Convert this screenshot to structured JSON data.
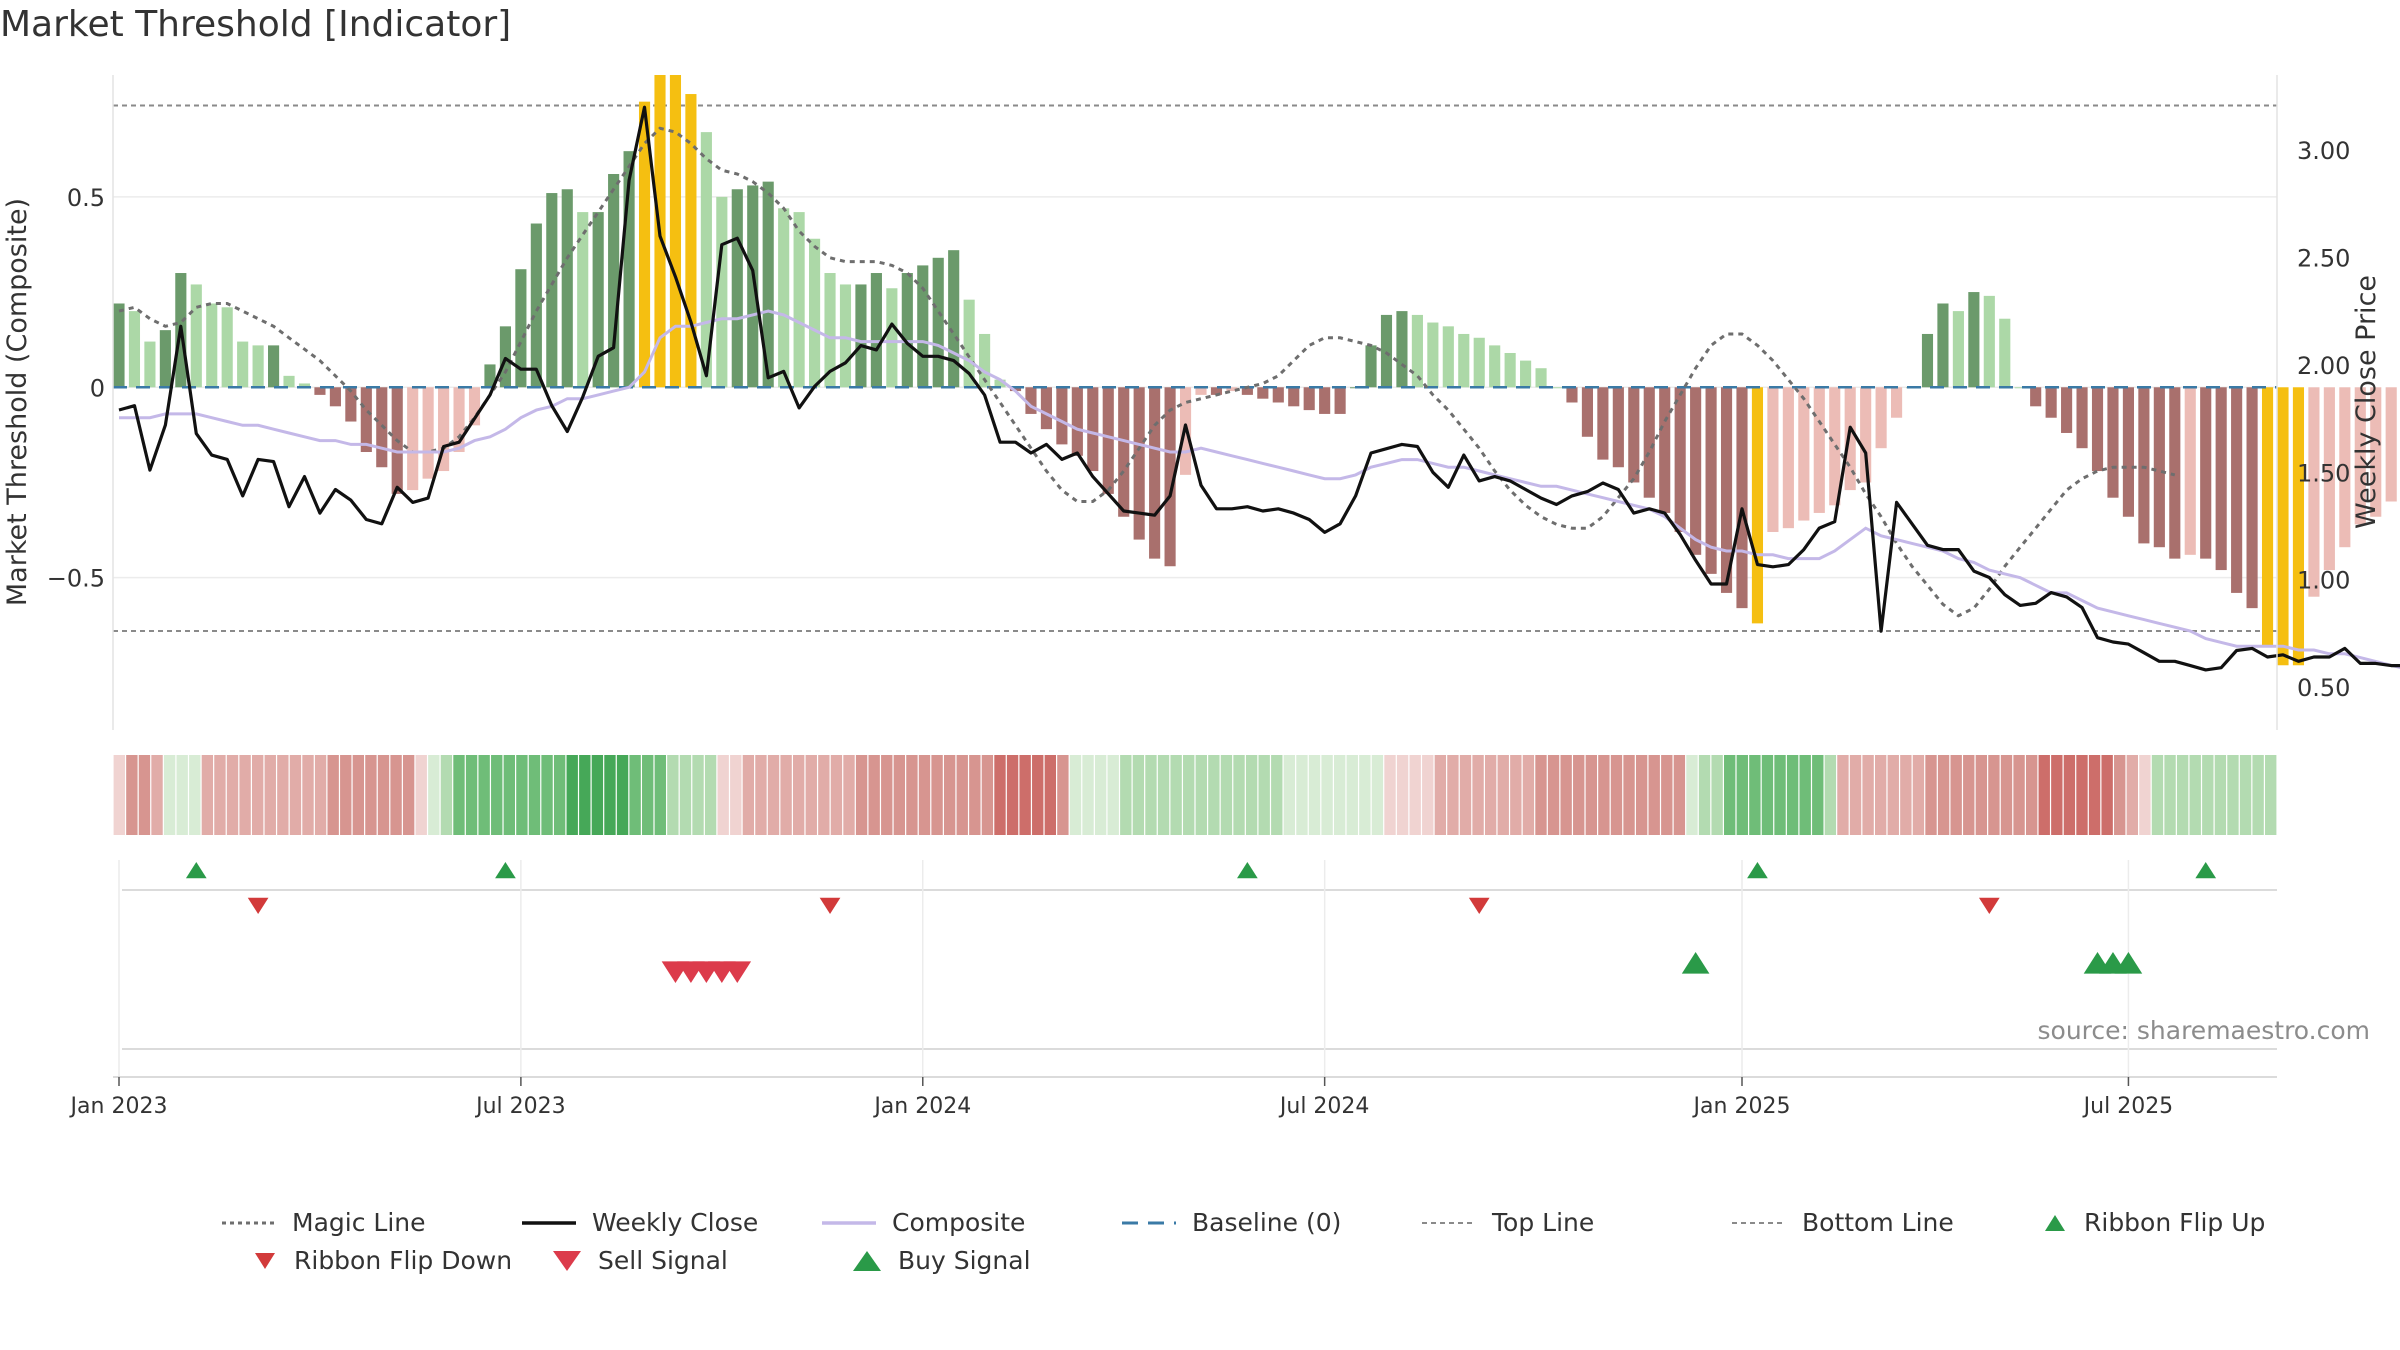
{
  "title": "Market Threshold [Indicator]",
  "source": "source: sharemaestro.com",
  "colors": {
    "strong_pos": "#6b9a6b",
    "weak_pos": "#acd8a7",
    "strong_neg": "#a9706d",
    "weak_neg": "#ecbcb6",
    "extreme": "#f5bf11",
    "magic": "#6e6e6e",
    "close": "#111111",
    "composite": "#c4b8e8",
    "baseline": "#3a7aa6",
    "guide": "#8a8a8a",
    "up": "#2a9a48",
    "down": "#d23a3a"
  },
  "chart_data": {
    "type": "bar",
    "x_start": "2023-01-02",
    "x_step_days": 7,
    "left_axis": {
      "label": "Market Threshold (Composite)",
      "range": [
        -0.9,
        0.82
      ],
      "ticks": [
        0.5,
        0,
        -0.5
      ],
      "tick_labels": [
        "0.5",
        "0",
        "−0.5"
      ]
    },
    "right_axis": {
      "label": "Weekly Close Price",
      "range": [
        0.3,
        3.35
      ],
      "ticks": [
        3.0,
        2.5,
        2.0,
        1.5,
        1.0,
        0.5
      ],
      "tick_labels": [
        "3.00",
        "2.50",
        "2.00",
        "1.50",
        "1.00",
        "0.50"
      ]
    },
    "x_ticks": [
      {
        "date": "2023-01-02",
        "label": "Jan 2023"
      },
      {
        "date": "2023-07-03",
        "label": "Jul 2023"
      },
      {
        "date": "2024-01-01",
        "label": "Jan 2024"
      },
      {
        "date": "2024-07-01",
        "label": "Jul 2024"
      },
      {
        "date": "2025-01-06",
        "label": "Jan 2025"
      },
      {
        "date": "2025-06-30",
        "label": "Jul 2025"
      }
    ],
    "top_line": 0.74,
    "bottom_line": -0.64,
    "composite_bars": [
      0.22,
      0.2,
      0.12,
      0.15,
      0.3,
      0.27,
      0.22,
      0.21,
      0.12,
      0.11,
      0.11,
      0.03,
      0.01,
      -0.02,
      -0.05,
      -0.09,
      -0.17,
      -0.21,
      -0.28,
      -0.27,
      -0.24,
      -0.22,
      -0.17,
      -0.1,
      0.06,
      0.16,
      0.31,
      0.43,
      0.51,
      0.52,
      0.46,
      0.46,
      0.56,
      0.62,
      0.75,
      0.82,
      0.82,
      0.77,
      0.67,
      0.5,
      0.52,
      0.53,
      0.54,
      0.47,
      0.46,
      0.39,
      0.3,
      0.27,
      0.27,
      0.3,
      0.26,
      0.3,
      0.32,
      0.34,
      0.36,
      0.23,
      0.14,
      0.02,
      -0.01,
      -0.07,
      -0.11,
      -0.15,
      -0.18,
      -0.22,
      -0.28,
      -0.34,
      -0.4,
      -0.45,
      -0.47,
      -0.23,
      -0.02,
      -0.02,
      -0.01,
      -0.02,
      -0.03,
      -0.04,
      -0.05,
      -0.06,
      -0.07,
      -0.07,
      0.0,
      0.11,
      0.19,
      0.2,
      0.19,
      0.17,
      0.16,
      0.14,
      0.13,
      0.11,
      0.09,
      0.07,
      0.05,
      0.0,
      -0.04,
      -0.13,
      -0.19,
      -0.21,
      -0.25,
      -0.29,
      -0.33,
      -0.38,
      -0.44,
      -0.49,
      -0.54,
      -0.58,
      -0.62,
      -0.38,
      -0.37,
      -0.35,
      -0.33,
      -0.31,
      -0.27,
      -0.25,
      -0.16,
      -0.08,
      0.0,
      0.14,
      0.22,
      0.2,
      0.25,
      0.24,
      0.18,
      0.0,
      -0.05,
      -0.08,
      -0.12,
      -0.16,
      -0.22,
      -0.29,
      -0.34,
      -0.41,
      -0.42,
      -0.45,
      -0.44,
      -0.45,
      -0.48,
      -0.54,
      -0.58,
      -0.68,
      -0.73,
      -0.73,
      -0.55,
      -0.48,
      -0.42,
      -0.36,
      -0.34,
      -0.3,
      -0.28,
      -0.25,
      -0.26,
      -0.24,
      -0.21,
      -0.25,
      -0.3,
      -0.3,
      -0.31
    ],
    "weekly_close": [
      1.79,
      1.81,
      1.51,
      1.72,
      2.18,
      1.68,
      1.58,
      1.56,
      1.39,
      1.56,
      1.55,
      1.34,
      1.48,
      1.31,
      1.42,
      1.37,
      1.28,
      1.26,
      1.43,
      1.36,
      1.38,
      1.62,
      1.64,
      1.75,
      1.86,
      2.03,
      1.98,
      1.98,
      1.81,
      1.69,
      1.85,
      2.04,
      2.08,
      2.86,
      3.2,
      2.6,
      2.41,
      2.2,
      1.95,
      2.56,
      2.59,
      2.44,
      1.94,
      1.97,
      1.8,
      1.9,
      1.97,
      2.01,
      2.09,
      2.07,
      2.19,
      2.1,
      2.04,
      2.04,
      2.02,
      1.96,
      1.86,
      1.64,
      1.64,
      1.59,
      1.63,
      1.56,
      1.59,
      1.48,
      1.4,
      1.32,
      1.31,
      1.3,
      1.39,
      1.72,
      1.44,
      1.33,
      1.33,
      1.34,
      1.32,
      1.33,
      1.31,
      1.28,
      1.22,
      1.26,
      1.39,
      1.59,
      1.61,
      1.63,
      1.62,
      1.5,
      1.43,
      1.58,
      1.46,
      1.48,
      1.46,
      1.42,
      1.38,
      1.35,
      1.39,
      1.41,
      1.45,
      1.42,
      1.31,
      1.33,
      1.31,
      1.21,
      1.09,
      0.98,
      0.98,
      1.33,
      1.07,
      1.06,
      1.07,
      1.14,
      1.24,
      1.27,
      1.71,
      1.59,
      0.76,
      1.36,
      1.26,
      1.16,
      1.14,
      1.14,
      1.04,
      1.01,
      0.93,
      0.88,
      0.89,
      0.94,
      0.92,
      0.87,
      0.73,
      0.71,
      0.7,
      0.66,
      0.62,
      0.62,
      0.6,
      0.58,
      0.59,
      0.67,
      0.68,
      0.64,
      0.65,
      0.62,
      0.64,
      0.64,
      0.68,
      0.61,
      0.61,
      0.6,
      0.6,
      0.59,
      0.59,
      0.59,
      0.58
    ],
    "composite_line": [
      -0.08,
      -0.08,
      -0.08,
      -0.07,
      -0.07,
      -0.07,
      -0.08,
      -0.09,
      -0.1,
      -0.1,
      -0.11,
      -0.12,
      -0.13,
      -0.14,
      -0.14,
      -0.15,
      -0.15,
      -0.16,
      -0.17,
      -0.17,
      -0.17,
      -0.17,
      -0.16,
      -0.14,
      -0.13,
      -0.11,
      -0.08,
      -0.06,
      -0.05,
      -0.03,
      -0.03,
      -0.02,
      -0.01,
      0.0,
      0.04,
      0.13,
      0.16,
      0.16,
      0.17,
      0.18,
      0.18,
      0.19,
      0.2,
      0.19,
      0.17,
      0.15,
      0.13,
      0.13,
      0.12,
      0.12,
      0.12,
      0.12,
      0.12,
      0.11,
      0.09,
      0.07,
      0.04,
      0.02,
      -0.01,
      -0.05,
      -0.07,
      -0.09,
      -0.11,
      -0.12,
      -0.13,
      -0.14,
      -0.15,
      -0.16,
      -0.17,
      -0.17,
      -0.16,
      -0.17,
      -0.18,
      -0.19,
      -0.2,
      -0.21,
      -0.22,
      -0.23,
      -0.24,
      -0.24,
      -0.23,
      -0.21,
      -0.2,
      -0.19,
      -0.19,
      -0.2,
      -0.21,
      -0.21,
      -0.22,
      -0.23,
      -0.24,
      -0.25,
      -0.26,
      -0.26,
      -0.27,
      -0.28,
      -0.29,
      -0.3,
      -0.31,
      -0.32,
      -0.34,
      -0.37,
      -0.4,
      -0.42,
      -0.43,
      -0.43,
      -0.44,
      -0.44,
      -0.45,
      -0.45,
      -0.45,
      -0.43,
      -0.4,
      -0.37,
      -0.39,
      -0.4,
      -0.41,
      -0.42,
      -0.43,
      -0.45,
      -0.46,
      -0.48,
      -0.49,
      -0.5,
      -0.52,
      -0.54,
      -0.54,
      -0.56,
      -0.58,
      -0.59,
      -0.6,
      -0.61,
      -0.62,
      -0.63,
      -0.64,
      -0.66,
      -0.67,
      -0.68,
      -0.68,
      -0.68,
      -0.68,
      -0.69,
      -0.69,
      -0.7,
      -0.7,
      -0.71,
      -0.72,
      -0.73,
      -0.74,
      -0.75
    ],
    "magic_line": [
      0.2,
      0.21,
      0.18,
      0.16,
      0.17,
      0.21,
      0.22,
      0.22,
      0.2,
      0.18,
      0.16,
      0.13,
      0.1,
      0.07,
      0.03,
      -0.01,
      -0.06,
      -0.1,
      -0.14,
      -0.17,
      -0.17,
      -0.16,
      -0.13,
      -0.08,
      -0.02,
      0.04,
      0.12,
      0.2,
      0.27,
      0.34,
      0.4,
      0.46,
      0.52,
      0.58,
      0.64,
      0.68,
      0.67,
      0.64,
      0.6,
      0.57,
      0.56,
      0.54,
      0.51,
      0.47,
      0.41,
      0.37,
      0.34,
      0.33,
      0.33,
      0.33,
      0.32,
      0.3,
      0.26,
      0.2,
      0.14,
      0.08,
      0.02,
      -0.04,
      -0.1,
      -0.16,
      -0.22,
      -0.27,
      -0.3,
      -0.3,
      -0.27,
      -0.22,
      -0.16,
      -0.1,
      -0.06,
      -0.04,
      -0.03,
      -0.02,
      -0.01,
      0.0,
      0.01,
      0.03,
      0.07,
      0.11,
      0.13,
      0.13,
      0.12,
      0.11,
      0.09,
      0.06,
      0.03,
      -0.02,
      -0.06,
      -0.11,
      -0.16,
      -0.22,
      -0.27,
      -0.31,
      -0.34,
      -0.36,
      -0.37,
      -0.37,
      -0.34,
      -0.29,
      -0.24,
      -0.17,
      -0.09,
      -0.02,
      0.05,
      0.11,
      0.14,
      0.14,
      0.11,
      0.07,
      0.02,
      -0.03,
      -0.09,
      -0.15,
      -0.21,
      -0.28,
      -0.34,
      -0.41,
      -0.47,
      -0.52,
      -0.57,
      -0.6,
      -0.58,
      -0.53,
      -0.47,
      -0.42,
      -0.37,
      -0.32,
      -0.27,
      -0.24,
      -0.22,
      -0.21,
      -0.21,
      -0.21,
      -0.22,
      -0.23
    ],
    "ribbon": [
      -1,
      -3,
      -3,
      -2,
      1,
      1,
      1,
      -2,
      -2,
      -2,
      -2,
      -2,
      -2,
      -2,
      -2,
      -2,
      -2,
      -3,
      -3,
      -3,
      -3,
      -3,
      -3,
      -3,
      -1,
      1,
      2,
      3,
      3,
      3,
      3,
      3,
      3,
      3,
      3,
      3,
      4,
      4,
      4,
      4,
      4,
      3,
      3,
      3,
      2,
      2,
      2,
      2,
      -1,
      -1,
      -2,
      -2,
      -2,
      -2,
      -2,
      -2,
      -2,
      -2,
      -2,
      -3,
      -3,
      -3,
      -3,
      -3,
      -3,
      -3,
      -3,
      -3,
      -3,
      -3,
      -4,
      -4,
      -4,
      -4,
      -4,
      -3,
      1,
      1,
      1,
      1,
      2,
      2,
      2,
      2,
      2,
      2,
      2,
      2,
      2,
      2,
      2,
      2,
      2,
      1,
      1,
      1,
      1,
      1,
      1,
      1,
      1,
      -1,
      -1,
      -1,
      -1,
      -2,
      -2,
      -2,
      -2,
      -2,
      -2,
      -2,
      -2,
      -3,
      -3,
      -3,
      -3,
      -3,
      -3,
      -3,
      -3,
      -3,
      -3,
      -3,
      -3,
      1,
      2,
      2,
      3,
      3,
      3,
      3,
      3,
      3,
      3,
      3,
      2,
      -2,
      -2,
      -2,
      -2,
      -2,
      -2,
      -2,
      -3,
      -3,
      -3,
      -3,
      -3,
      -3,
      -3,
      -3,
      -3,
      -4,
      -4,
      -4,
      -4,
      -4,
      -4,
      -3,
      -2,
      -1,
      2,
      2,
      2,
      2,
      2,
      2,
      2,
      2,
      2,
      2
    ],
    "ribbon_flips_up": [
      "2023-02-06",
      "2023-06-26",
      "2024-05-27",
      "2025-01-13",
      "2025-08-04"
    ],
    "ribbon_flips_down": [
      "2023-03-06",
      "2023-11-20",
      "2024-09-09",
      "2025-04-28"
    ],
    "sell_signals": [
      "2023-09-11",
      "2023-09-18",
      "2023-09-25",
      "2023-10-02",
      "2023-10-09"
    ],
    "buy_signals": [
      "2024-12-16",
      "2025-06-16",
      "2025-06-23",
      "2025-06-30"
    ]
  },
  "legend": [
    {
      "label": "Magic Line",
      "symbol": "dotted-line"
    },
    {
      "label": "Weekly Close",
      "symbol": "solid-line"
    },
    {
      "label": "Composite",
      "symbol": "lavender-line"
    },
    {
      "label": "Baseline (0)",
      "symbol": "dashed-line"
    },
    {
      "label": "Top Line",
      "symbol": "guide-line"
    },
    {
      "label": "Bottom Line",
      "symbol": "guide-line"
    },
    {
      "label": "Ribbon Flip Up",
      "symbol": "triangle-up"
    },
    {
      "label": "Ribbon Flip Down",
      "symbol": "triangle-down"
    },
    {
      "label": "Sell Signal",
      "symbol": "triangle-down-large"
    },
    {
      "label": "Buy Signal",
      "symbol": "triangle-up-large"
    }
  ]
}
